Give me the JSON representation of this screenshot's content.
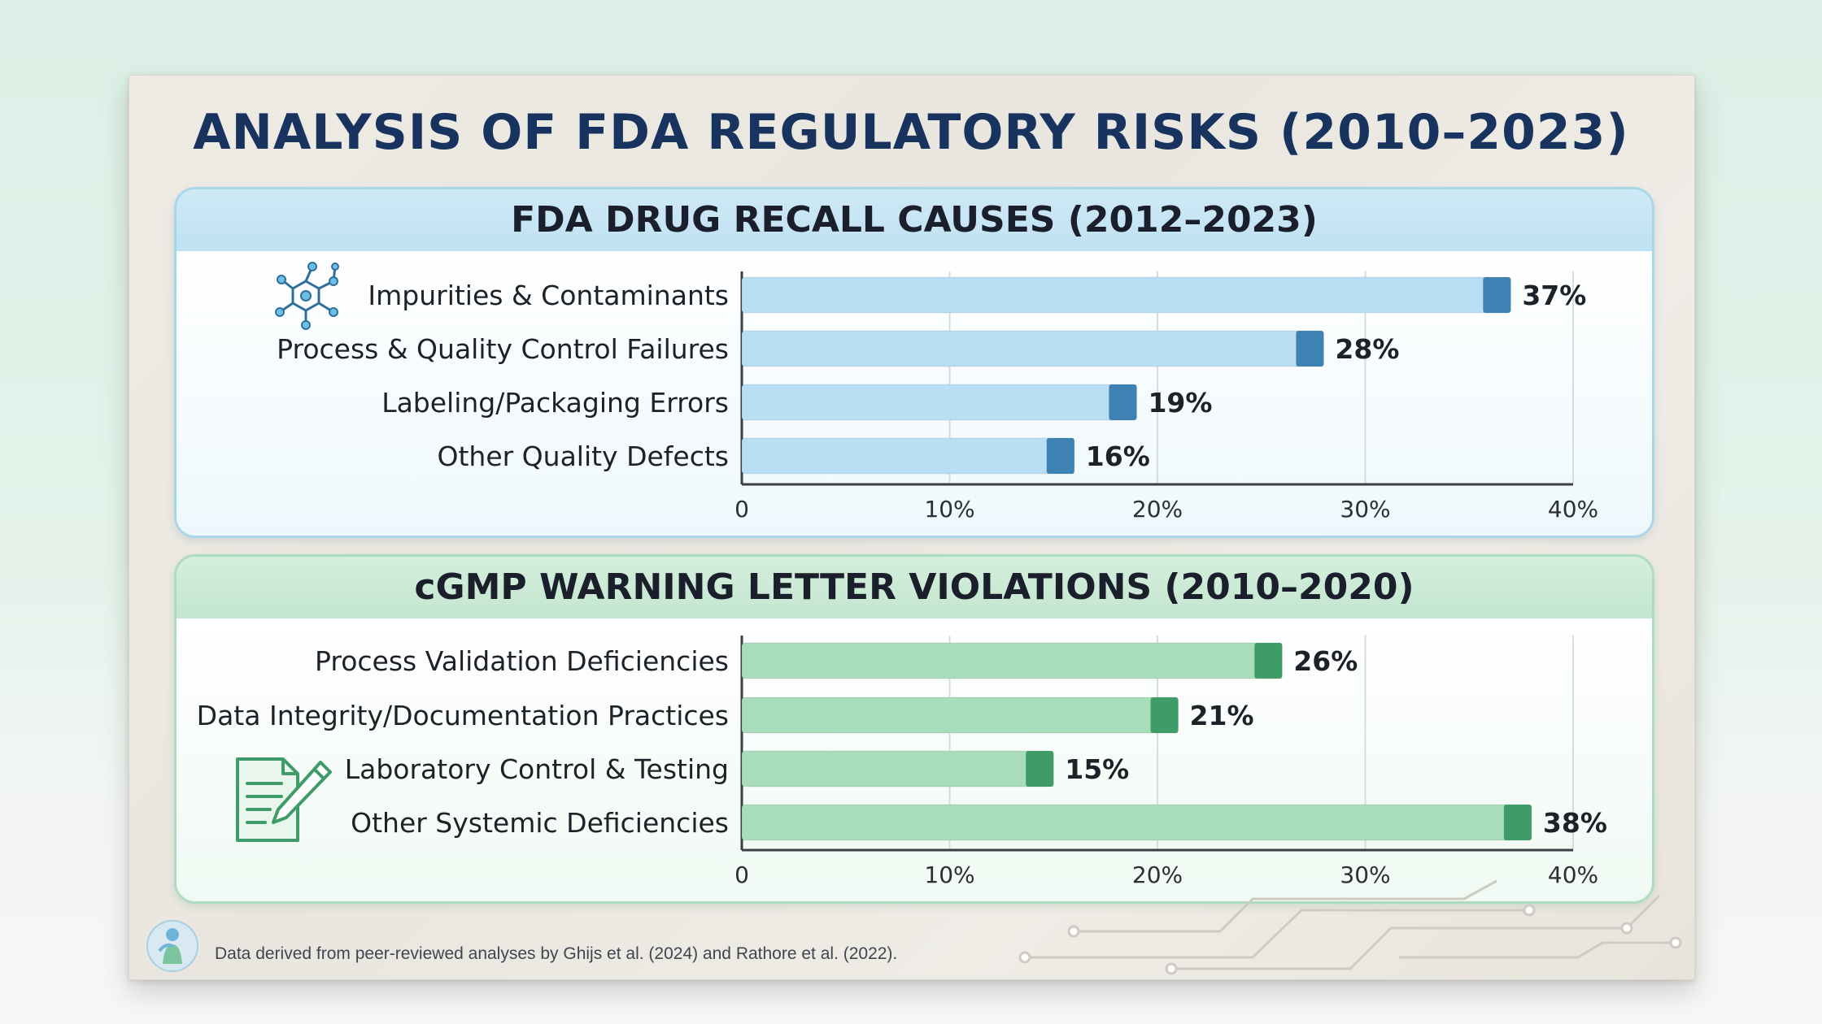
{
  "title": "ANALYSIS OF FDA REGULATORY RISKS (2010–2023)",
  "footnote": "Data derived from peer-reviewed analyses by Ghijs et al. (2024) and Rathore et al. (2022).",
  "colors": {
    "recall_bar": "#b9ddf3",
    "recall_cap": "#3d82b3",
    "warning_bar": "#a8dcba",
    "warning_cap": "#3f9c68",
    "title": "#17335e"
  },
  "icons": {
    "recall": "molecule-icon",
    "warning": "document-pen-icon",
    "logo": "person-logo-icon"
  },
  "chart_data": [
    {
      "type": "bar",
      "orientation": "horizontal",
      "title": "FDA DRUG RECALL CAUSES (2012–2023)",
      "categories": [
        "Impurities & Contaminants",
        "Process & Quality Control Failures",
        "Labeling/Packaging Errors",
        "Other Quality Defects"
      ],
      "values": [
        37,
        28,
        19,
        16
      ],
      "value_labels": [
        "37%",
        "28%",
        "19%",
        "16%"
      ],
      "xlim": [
        0,
        40
      ],
      "ticks": [
        0,
        10,
        20,
        30,
        40
      ],
      "tick_labels": [
        "0",
        "10%",
        "20%",
        "30%",
        "40%"
      ],
      "grid": true
    },
    {
      "type": "bar",
      "orientation": "horizontal",
      "title": "cGMP WARNING LETTER VIOLATIONS (2010–2020)",
      "categories": [
        "Process Validation Deficiencies",
        "Data Integrity/Documentation Practices",
        "Laboratory Control & Testing",
        "Other Systemic Deficiencies"
      ],
      "values": [
        26,
        21,
        15,
        38
      ],
      "value_labels": [
        "26%",
        "21%",
        "15%",
        "38%"
      ],
      "xlim": [
        0,
        40
      ],
      "ticks": [
        0,
        10,
        20,
        30,
        40
      ],
      "tick_labels": [
        "0",
        "10%",
        "20%",
        "30%",
        "40%"
      ],
      "grid": true
    }
  ]
}
